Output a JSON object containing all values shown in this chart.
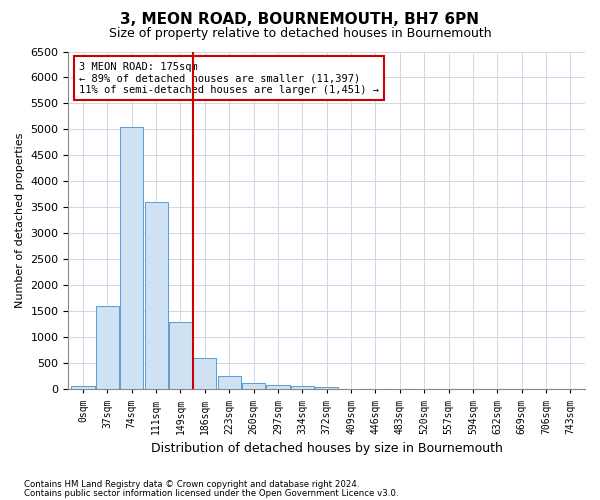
{
  "title": "3, MEON ROAD, BOURNEMOUTH, BH7 6PN",
  "subtitle": "Size of property relative to detached houses in Bournemouth",
  "xlabel": "Distribution of detached houses by size in Bournemouth",
  "ylabel": "Number of detached properties",
  "footer_line1": "Contains HM Land Registry data © Crown copyright and database right 2024.",
  "footer_line2": "Contains public sector information licensed under the Open Government Licence v3.0.",
  "annotation_line1": "3 MEON ROAD: 175sqm",
  "annotation_line2": "← 89% of detached houses are smaller (11,397)",
  "annotation_line3": "11% of semi-detached houses are larger (1,451) →",
  "bar_color": "#cfe2f3",
  "bar_edge_color": "#5b9bd5",
  "vline_color": "#cc0000",
  "vline_x": 4.5,
  "ylim": [
    0,
    6500
  ],
  "yticks": [
    0,
    500,
    1000,
    1500,
    2000,
    2500,
    3000,
    3500,
    4000,
    4500,
    5000,
    5500,
    6000,
    6500
  ],
  "bin_labels": [
    "0sqm",
    "37sqm",
    "74sqm",
    "111sqm",
    "149sqm",
    "186sqm",
    "223sqm",
    "260sqm",
    "297sqm",
    "334sqm",
    "372sqm",
    "409sqm",
    "446sqm",
    "483sqm",
    "520sqm",
    "557sqm",
    "594sqm",
    "632sqm",
    "669sqm",
    "706sqm",
    "743sqm"
  ],
  "bar_heights": [
    60,
    1600,
    5050,
    3600,
    1300,
    600,
    250,
    130,
    80,
    70,
    55,
    10,
    0,
    0,
    0,
    0,
    0,
    0,
    0,
    0,
    0
  ],
  "background_color": "#ffffff",
  "grid_color": "#d0d8e8"
}
